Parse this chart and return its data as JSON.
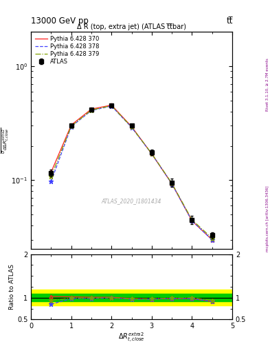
{
  "title_top": "13000 GeV pp",
  "title_top_right": "tt̅",
  "plot_title": "Δ R (top, extra jet) (ATLAS t̅t̅bar)",
  "watermark": "ATLAS_2020_I1801434",
  "right_label": "mcplots.cern.ch [arXiv:1306.3436]",
  "right_label2": "Rivet 3.1.10, ≥ 2.7M events",
  "xlim": [
    0,
    5.0
  ],
  "ylim_main": [
    0.025,
    2.0
  ],
  "ylim_ratio": [
    0.5,
    2.0
  ],
  "data_x": [
    0.5,
    1.0,
    1.5,
    2.0,
    2.5,
    3.0,
    3.5,
    4.0,
    4.5
  ],
  "data_y": [
    0.115,
    0.3,
    0.415,
    0.45,
    0.3,
    0.175,
    0.095,
    0.045,
    0.033
  ],
  "data_yerr": [
    0.008,
    0.012,
    0.012,
    0.012,
    0.012,
    0.01,
    0.008,
    0.004,
    0.002
  ],
  "p370_x": [
    0.5,
    1.0,
    1.5,
    2.0,
    2.5,
    3.0,
    3.5,
    4.0,
    4.5
  ],
  "p370_y": [
    0.118,
    0.305,
    0.42,
    0.455,
    0.295,
    0.17,
    0.093,
    0.044,
    0.03
  ],
  "p378_x": [
    0.5,
    1.0,
    1.5,
    2.0,
    2.5,
    3.0,
    3.5,
    4.0,
    4.5
  ],
  "p378_y": [
    0.098,
    0.295,
    0.408,
    0.447,
    0.29,
    0.17,
    0.093,
    0.044,
    0.03
  ],
  "p379_x": [
    0.5,
    1.0,
    1.5,
    2.0,
    2.5,
    3.0,
    3.5,
    4.0,
    4.5
  ],
  "p379_y": [
    0.108,
    0.298,
    0.412,
    0.45,
    0.292,
    0.171,
    0.094,
    0.045,
    0.031
  ],
  "ratio370_y": [
    1.03,
    1.02,
    1.01,
    1.01,
    0.98,
    0.97,
    0.98,
    0.98,
    0.91
  ],
  "ratio378_y": [
    0.85,
    0.98,
    0.985,
    0.993,
    0.967,
    0.971,
    0.98,
    0.98,
    0.91
  ],
  "ratio379_y": [
    0.94,
    0.993,
    0.993,
    0.999,
    0.973,
    0.977,
    0.99,
    1.0,
    0.94
  ],
  "band_yellow": 0.18,
  "band_green": 0.09,
  "color_data": "#000000",
  "color_370": "#ff2020",
  "color_378": "#4040ff",
  "color_379": "#80a000",
  "color_band_yellow": "#ffff00",
  "color_band_green": "#00cc00"
}
